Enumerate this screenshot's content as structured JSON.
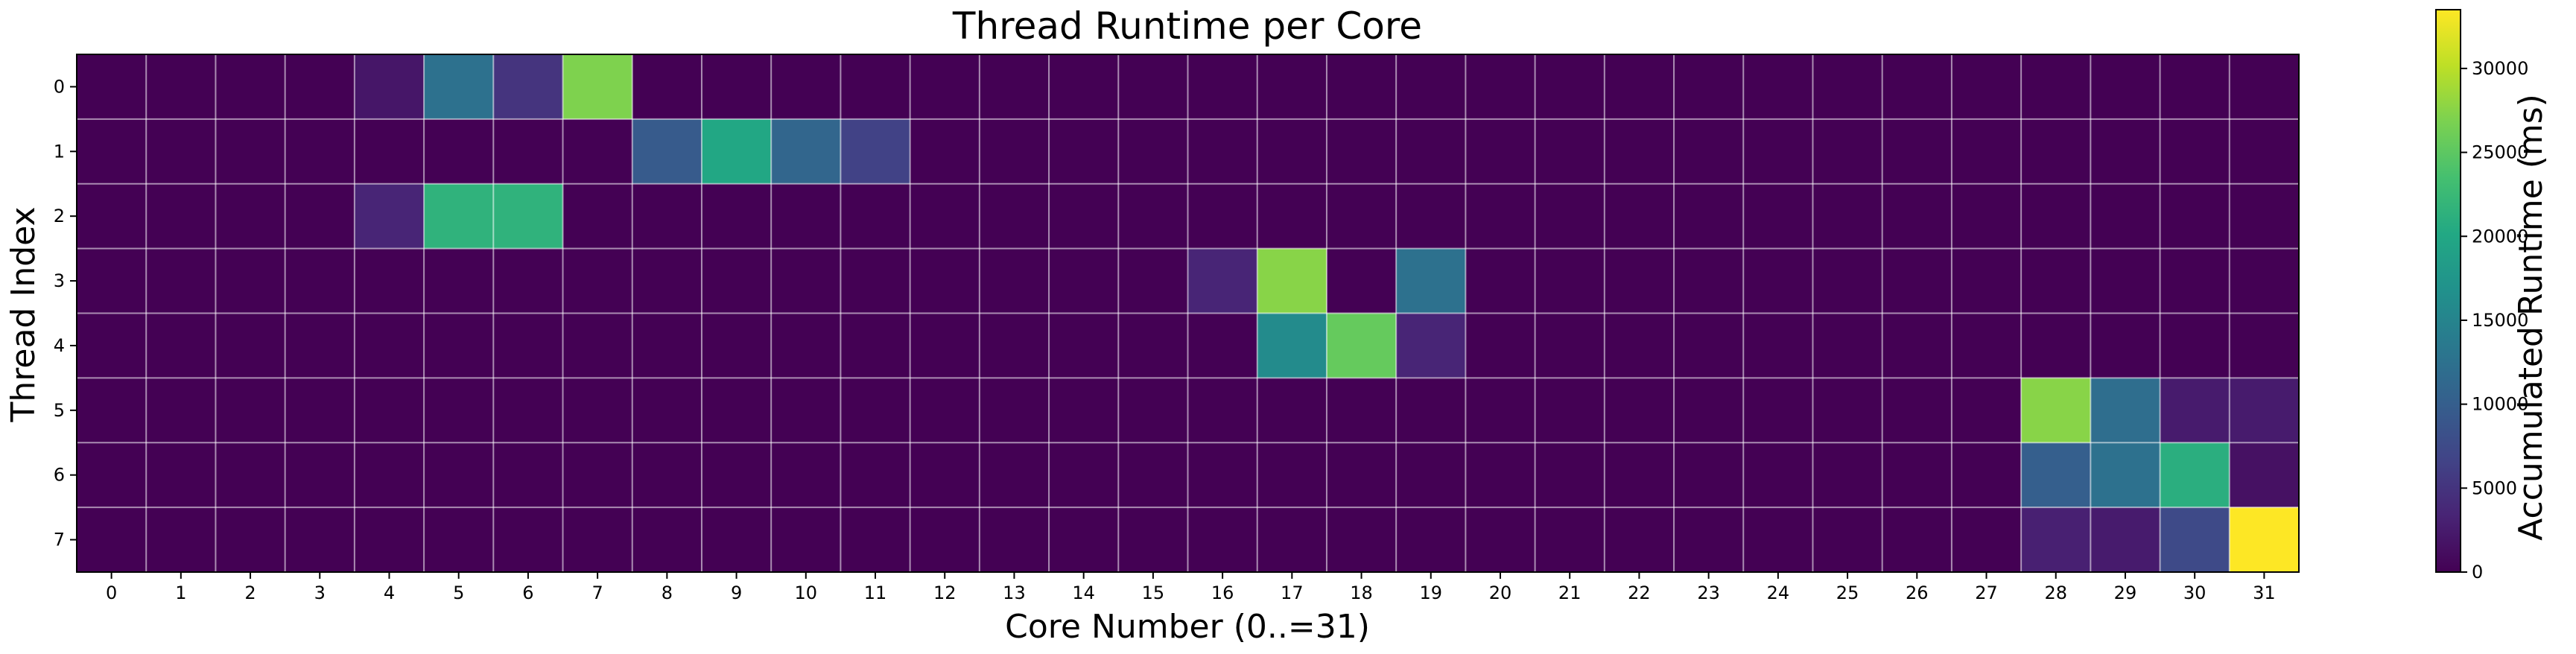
{
  "chart_data": {
    "type": "heatmap",
    "title": "Thread Runtime per Core",
    "xlabel": "Core Number (0..=31)",
    "ylabel": "Thread Index",
    "x_categories": [
      "0",
      "1",
      "2",
      "3",
      "4",
      "5",
      "6",
      "7",
      "8",
      "9",
      "10",
      "11",
      "12",
      "13",
      "14",
      "15",
      "16",
      "17",
      "18",
      "19",
      "20",
      "21",
      "22",
      "23",
      "24",
      "25",
      "26",
      "27",
      "28",
      "29",
      "30",
      "31"
    ],
    "y_categories": [
      "0",
      "1",
      "2",
      "3",
      "4",
      "5",
      "6",
      "7"
    ],
    "values": [
      [
        0,
        0,
        0,
        0,
        2000,
        12500,
        5000,
        27000,
        0,
        0,
        0,
        0,
        0,
        0,
        0,
        0,
        0,
        0,
        0,
        0,
        0,
        0,
        0,
        0,
        0,
        0,
        0,
        0,
        0,
        0,
        0,
        0
      ],
      [
        0,
        0,
        0,
        0,
        0,
        0,
        0,
        0,
        9500,
        20000,
        11000,
        6500,
        0,
        0,
        0,
        0,
        0,
        0,
        0,
        0,
        0,
        0,
        0,
        0,
        0,
        0,
        0,
        0,
        0,
        0,
        0,
        0
      ],
      [
        0,
        0,
        0,
        0,
        3500,
        21500,
        21500,
        0,
        0,
        0,
        0,
        0,
        0,
        0,
        0,
        0,
        0,
        0,
        0,
        0,
        0,
        0,
        0,
        0,
        0,
        0,
        0,
        0,
        0,
        0,
        0,
        0
      ],
      [
        0,
        0,
        0,
        0,
        0,
        0,
        0,
        0,
        0,
        0,
        0,
        0,
        0,
        0,
        0,
        0,
        3500,
        27500,
        0,
        12500,
        0,
        0,
        0,
        0,
        0,
        0,
        0,
        0,
        0,
        0,
        0,
        0
      ],
      [
        0,
        0,
        0,
        0,
        0,
        0,
        0,
        0,
        0,
        0,
        0,
        0,
        0,
        0,
        0,
        0,
        0,
        16000,
        25500,
        3500,
        0,
        0,
        0,
        0,
        0,
        0,
        0,
        0,
        0,
        0,
        0,
        0
      ],
      [
        0,
        0,
        0,
        0,
        0,
        0,
        0,
        0,
        0,
        0,
        0,
        0,
        0,
        0,
        0,
        0,
        0,
        0,
        0,
        0,
        0,
        0,
        0,
        0,
        0,
        0,
        0,
        0,
        27500,
        12000,
        2500,
        2500
      ],
      [
        0,
        0,
        0,
        0,
        0,
        0,
        0,
        0,
        0,
        0,
        0,
        0,
        0,
        0,
        0,
        0,
        0,
        0,
        0,
        0,
        0,
        0,
        0,
        0,
        0,
        0,
        0,
        0,
        10000,
        12500,
        21000,
        1500
      ],
      [
        0,
        0,
        0,
        0,
        0,
        0,
        0,
        0,
        0,
        0,
        0,
        0,
        0,
        0,
        0,
        0,
        0,
        0,
        0,
        0,
        0,
        0,
        0,
        0,
        0,
        0,
        0,
        0,
        3000,
        2500,
        7500,
        33500
      ]
    ],
    "colorbar": {
      "label": "Accumulated Runtime (ms)",
      "min": 0,
      "max": 33500,
      "ticks": [
        0,
        5000,
        10000,
        15000,
        20000,
        25000,
        30000
      ],
      "colormap": "viridis"
    },
    "grid": true
  }
}
